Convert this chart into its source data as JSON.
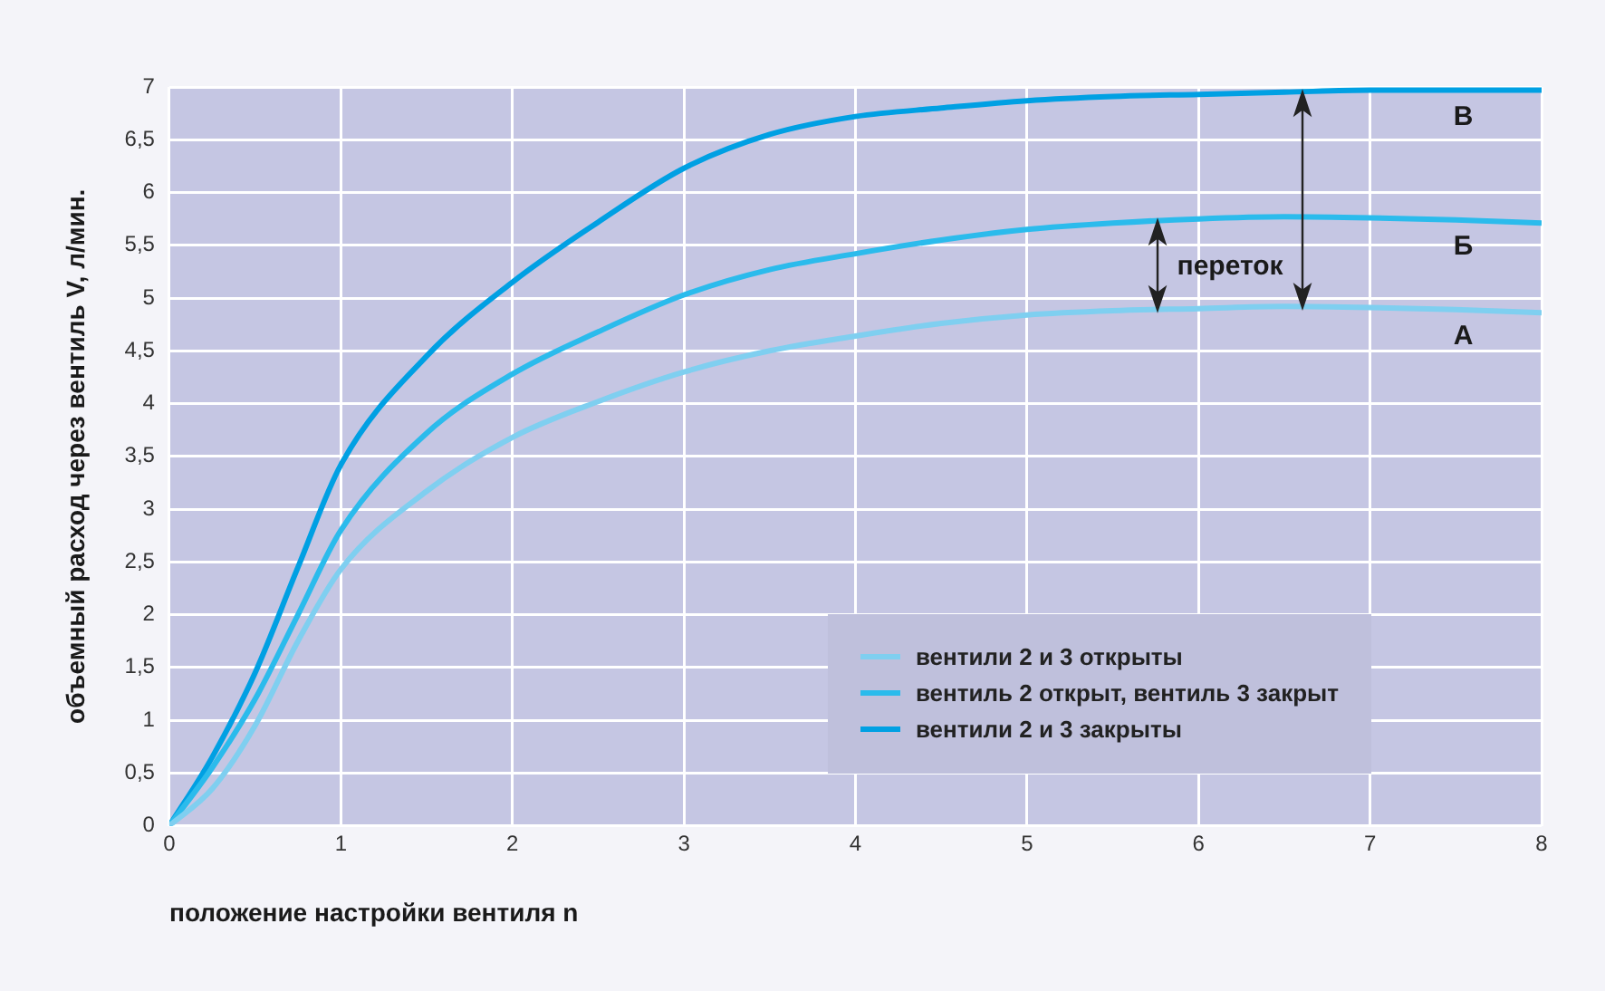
{
  "chart_data": {
    "type": "line",
    "xlabel": "положение настройки вентиля n",
    "ylabel": "объемный расход через вентиль V, л/мин.",
    "xlim": [
      0,
      8
    ],
    "xticks": [
      0,
      1,
      2,
      3,
      4,
      5,
      6,
      7,
      8
    ],
    "ylim": [
      0,
      7
    ],
    "yticks": [
      0,
      {
        "value": 0.5,
        "label": "0,5"
      },
      1,
      {
        "value": 1.5,
        "label": "1,5"
      },
      2,
      {
        "value": 2.5,
        "label": "2,5"
      },
      3,
      {
        "value": 3.5,
        "label": "3,5"
      },
      4,
      {
        "value": 4.5,
        "label": "4,5"
      },
      5,
      {
        "value": 5.5,
        "label": "5,5"
      },
      6,
      {
        "value": 6.5,
        "label": "6,5"
      },
      7
    ],
    "x": [
      0,
      0.25,
      0.5,
      0.75,
      1,
      1.5,
      2,
      2.5,
      3,
      3.5,
      4,
      4.5,
      5,
      5.5,
      6,
      6.5,
      7,
      7.5,
      8
    ],
    "series": [
      {
        "name": "вентили 2 и 3 открыты",
        "color": "#7fcff0",
        "values": [
          0,
          0.35,
          0.95,
          1.75,
          2.43,
          3.17,
          3.68,
          4.02,
          4.3,
          4.5,
          4.64,
          4.76,
          4.84,
          4.88,
          4.9,
          4.92,
          4.91,
          4.89,
          4.86
        ]
      },
      {
        "name": "вентиль 2 открыт, вентиль 3 закрыт",
        "color": "#2bbbec",
        "values": [
          0,
          0.55,
          1.2,
          2.0,
          2.8,
          3.72,
          4.28,
          4.68,
          5.03,
          5.27,
          5.42,
          5.55,
          5.65,
          5.71,
          5.75,
          5.77,
          5.76,
          5.74,
          5.71
        ]
      },
      {
        "name": "вентили 2 и 3 закрыты",
        "color": "#00a0e3",
        "values": [
          0,
          0.65,
          1.45,
          2.45,
          3.42,
          4.45,
          5.15,
          5.72,
          6.23,
          6.55,
          6.72,
          6.8,
          6.87,
          6.91,
          6.93,
          6.95,
          6.97,
          6.97,
          6.97
        ]
      }
    ],
    "annotations": [
      "переток",
      "В",
      "Б",
      "А"
    ],
    "grid": true,
    "legend": "bottom right",
    "marker": "none",
    "line_style": "solid"
  }
}
